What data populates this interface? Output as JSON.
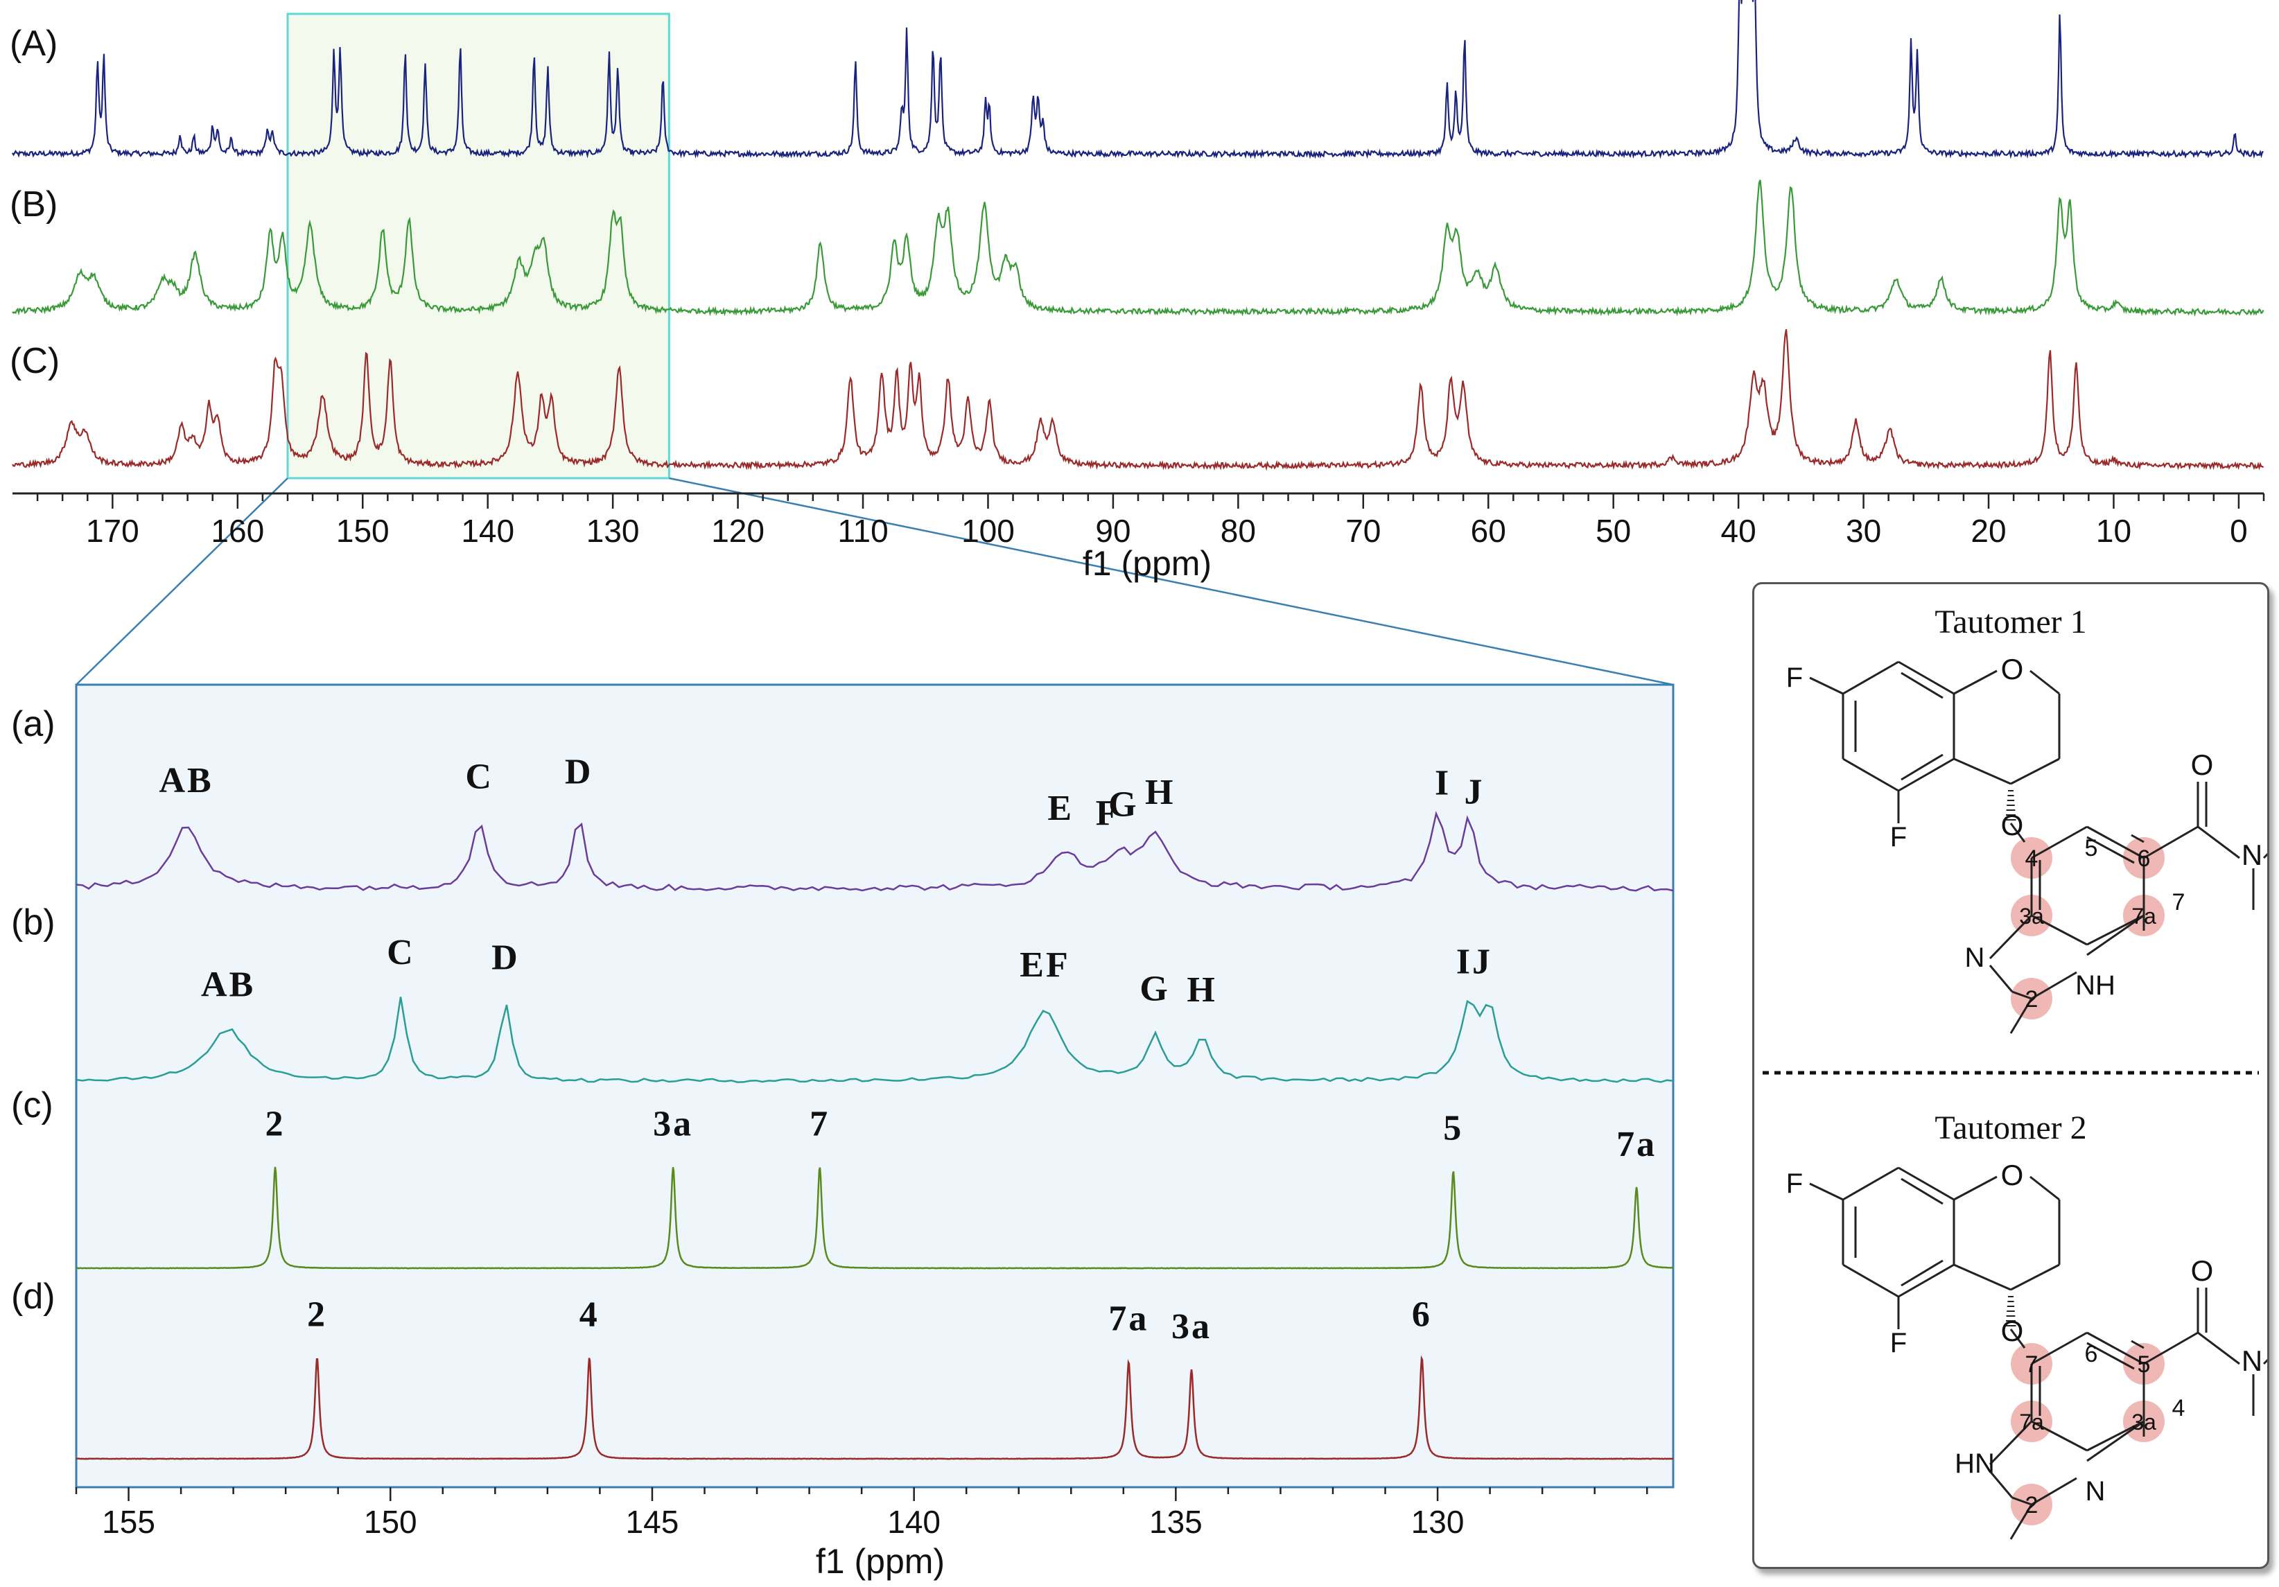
{
  "chart_data": [
    {
      "type": "line",
      "panel": "top",
      "xlabel": "f1 (ppm)",
      "xlim": [
        178,
        -2
      ],
      "x_reversed": true,
      "x_ticks": [
        170,
        160,
        150,
        140,
        130,
        120,
        110,
        100,
        90,
        80,
        70,
        60,
        50,
        40,
        30,
        20,
        10,
        0
      ],
      "zoom_region_ppm": [
        156,
        125.5
      ],
      "series": [
        {
          "name": "(A)",
          "color": "#1a237e",
          "peaks": [
            {
              "x": 171.2,
              "h": 0.62,
              "w": 0.12
            },
            {
              "x": 170.7,
              "h": 0.66,
              "w": 0.12
            },
            {
              "x": 164.6,
              "h": 0.14,
              "w": 0.12
            },
            {
              "x": 163.5,
              "h": 0.12,
              "w": 0.12
            },
            {
              "x": 162.0,
              "h": 0.19,
              "w": 0.12
            },
            {
              "x": 161.6,
              "h": 0.16,
              "w": 0.12
            },
            {
              "x": 160.5,
              "h": 0.11,
              "w": 0.12
            },
            {
              "x": 157.6,
              "h": 0.15,
              "w": 0.15
            },
            {
              "x": 157.2,
              "h": 0.13,
              "w": 0.15
            },
            {
              "x": 152.3,
              "h": 0.7,
              "w": 0.12
            },
            {
              "x": 151.8,
              "h": 0.72,
              "w": 0.12
            },
            {
              "x": 146.6,
              "h": 0.72,
              "w": 0.12
            },
            {
              "x": 145.0,
              "h": 0.63,
              "w": 0.12
            },
            {
              "x": 142.2,
              "h": 0.75,
              "w": 0.12
            },
            {
              "x": 136.3,
              "h": 0.7,
              "w": 0.12
            },
            {
              "x": 135.2,
              "h": 0.6,
              "w": 0.12
            },
            {
              "x": 130.3,
              "h": 0.68,
              "w": 0.12
            },
            {
              "x": 129.6,
              "h": 0.6,
              "w": 0.12
            },
            {
              "x": 126.0,
              "h": 0.53,
              "w": 0.12
            },
            {
              "x": 110.6,
              "h": 0.65,
              "w": 0.12
            },
            {
              "x": 106.9,
              "h": 0.28,
              "w": 0.12
            },
            {
              "x": 106.5,
              "h": 0.83,
              "w": 0.12
            },
            {
              "x": 104.4,
              "h": 0.74,
              "w": 0.12
            },
            {
              "x": 103.8,
              "h": 0.7,
              "w": 0.12
            },
            {
              "x": 100.2,
              "h": 0.33,
              "w": 0.12
            },
            {
              "x": 99.9,
              "h": 0.3,
              "w": 0.12
            },
            {
              "x": 96.4,
              "h": 0.38,
              "w": 0.13
            },
            {
              "x": 96.0,
              "h": 0.36,
              "w": 0.13
            },
            {
              "x": 95.6,
              "h": 0.2,
              "w": 0.13
            },
            {
              "x": 63.3,
              "h": 0.47,
              "w": 0.12
            },
            {
              "x": 62.6,
              "h": 0.42,
              "w": 0.12
            },
            {
              "x": 61.9,
              "h": 0.8,
              "w": 0.12
            },
            {
              "x": 39.9,
              "h": 0.98,
              "w": 0.14
            },
            {
              "x": 39.6,
              "h": 0.98,
              "w": 0.14
            },
            {
              "x": 39.3,
              "h": 0.98,
              "w": 0.14
            },
            {
              "x": 39.0,
              "h": 0.98,
              "w": 0.14
            },
            {
              "x": 38.7,
              "h": 0.98,
              "w": 0.14
            },
            {
              "x": 35.4,
              "h": 0.1,
              "w": 0.3
            },
            {
              "x": 26.2,
              "h": 0.75,
              "w": 0.12
            },
            {
              "x": 25.7,
              "h": 0.68,
              "w": 0.12
            },
            {
              "x": 14.3,
              "h": 0.98,
              "w": 0.12
            },
            {
              "x": 0.3,
              "h": 0.14,
              "w": 0.12
            }
          ]
        },
        {
          "name": "(B)",
          "color": "#3a9a3a",
          "peaks": [
            {
              "x": 172.6,
              "h": 0.22,
              "w": 0.6
            },
            {
              "x": 171.5,
              "h": 0.2,
              "w": 0.6
            },
            {
              "x": 166.0,
              "h": 0.18,
              "w": 0.5
            },
            {
              "x": 165.2,
              "h": 0.12,
              "w": 0.5
            },
            {
              "x": 163.4,
              "h": 0.38,
              "w": 0.5
            },
            {
              "x": 157.4,
              "h": 0.5,
              "w": 0.35
            },
            {
              "x": 156.4,
              "h": 0.45,
              "w": 0.35
            },
            {
              "x": 154.2,
              "h": 0.58,
              "w": 0.45
            },
            {
              "x": 148.4,
              "h": 0.55,
              "w": 0.35
            },
            {
              "x": 146.3,
              "h": 0.62,
              "w": 0.35
            },
            {
              "x": 137.5,
              "h": 0.3,
              "w": 0.5
            },
            {
              "x": 136.2,
              "h": 0.3,
              "w": 0.5
            },
            {
              "x": 135.5,
              "h": 0.38,
              "w": 0.4
            },
            {
              "x": 130.0,
              "h": 0.55,
              "w": 0.35
            },
            {
              "x": 129.4,
              "h": 0.5,
              "w": 0.35
            },
            {
              "x": 113.4,
              "h": 0.47,
              "w": 0.35
            },
            {
              "x": 107.5,
              "h": 0.43,
              "w": 0.35
            },
            {
              "x": 106.5,
              "h": 0.45,
              "w": 0.35
            },
            {
              "x": 104.0,
              "h": 0.52,
              "w": 0.4
            },
            {
              "x": 103.2,
              "h": 0.58,
              "w": 0.4
            },
            {
              "x": 100.3,
              "h": 0.7,
              "w": 0.45
            },
            {
              "x": 98.6,
              "h": 0.28,
              "w": 0.4
            },
            {
              "x": 97.8,
              "h": 0.25,
              "w": 0.4
            },
            {
              "x": 63.3,
              "h": 0.5,
              "w": 0.4
            },
            {
              "x": 62.5,
              "h": 0.44,
              "w": 0.4
            },
            {
              "x": 60.9,
              "h": 0.22,
              "w": 0.5
            },
            {
              "x": 59.4,
              "h": 0.28,
              "w": 0.5
            },
            {
              "x": 38.3,
              "h": 0.88,
              "w": 0.4
            },
            {
              "x": 35.8,
              "h": 0.85,
              "w": 0.4
            },
            {
              "x": 27.4,
              "h": 0.22,
              "w": 0.5
            },
            {
              "x": 23.8,
              "h": 0.22,
              "w": 0.45
            },
            {
              "x": 14.3,
              "h": 0.7,
              "w": 0.3
            },
            {
              "x": 13.5,
              "h": 0.68,
              "w": 0.3
            },
            {
              "x": 9.8,
              "h": 0.06,
              "w": 0.3
            }
          ]
        },
        {
          "name": "(C)",
          "color": "#9b2a2a",
          "peaks": [
            {
              "x": 173.3,
              "h": 0.27,
              "w": 0.5
            },
            {
              "x": 172.2,
              "h": 0.2,
              "w": 0.5
            },
            {
              "x": 164.5,
              "h": 0.25,
              "w": 0.35
            },
            {
              "x": 163.6,
              "h": 0.15,
              "w": 0.35
            },
            {
              "x": 162.3,
              "h": 0.38,
              "w": 0.3
            },
            {
              "x": 161.6,
              "h": 0.28,
              "w": 0.3
            },
            {
              "x": 157.0,
              "h": 0.6,
              "w": 0.3
            },
            {
              "x": 156.5,
              "h": 0.5,
              "w": 0.3
            },
            {
              "x": 153.2,
              "h": 0.47,
              "w": 0.45
            },
            {
              "x": 149.7,
              "h": 0.75,
              "w": 0.28
            },
            {
              "x": 147.8,
              "h": 0.72,
              "w": 0.28
            },
            {
              "x": 137.6,
              "h": 0.62,
              "w": 0.4
            },
            {
              "x": 135.7,
              "h": 0.42,
              "w": 0.3
            },
            {
              "x": 134.9,
              "h": 0.42,
              "w": 0.3
            },
            {
              "x": 129.5,
              "h": 0.68,
              "w": 0.35
            },
            {
              "x": 111.0,
              "h": 0.6,
              "w": 0.3
            },
            {
              "x": 108.5,
              "h": 0.6,
              "w": 0.3
            },
            {
              "x": 107.3,
              "h": 0.58,
              "w": 0.25
            },
            {
              "x": 106.2,
              "h": 0.6,
              "w": 0.25
            },
            {
              "x": 105.5,
              "h": 0.53,
              "w": 0.25
            },
            {
              "x": 103.2,
              "h": 0.57,
              "w": 0.3
            },
            {
              "x": 101.6,
              "h": 0.42,
              "w": 0.3
            },
            {
              "x": 99.9,
              "h": 0.42,
              "w": 0.3
            },
            {
              "x": 95.8,
              "h": 0.28,
              "w": 0.35
            },
            {
              "x": 94.8,
              "h": 0.28,
              "w": 0.35
            },
            {
              "x": 65.4,
              "h": 0.55,
              "w": 0.3
            },
            {
              "x": 63.0,
              "h": 0.55,
              "w": 0.3
            },
            {
              "x": 62.0,
              "h": 0.52,
              "w": 0.35
            },
            {
              "x": 45.3,
              "h": 0.05,
              "w": 0.4
            },
            {
              "x": 38.8,
              "h": 0.53,
              "w": 0.4
            },
            {
              "x": 38.0,
              "h": 0.45,
              "w": 0.4
            },
            {
              "x": 36.2,
              "h": 0.9,
              "w": 0.35
            },
            {
              "x": 30.6,
              "h": 0.3,
              "w": 0.35
            },
            {
              "x": 27.9,
              "h": 0.25,
              "w": 0.4
            },
            {
              "x": 15.1,
              "h": 0.78,
              "w": 0.25
            },
            {
              "x": 13.0,
              "h": 0.7,
              "w": 0.25
            },
            {
              "x": 10.0,
              "h": 0.04,
              "w": 0.3
            }
          ]
        }
      ]
    },
    {
      "type": "line",
      "panel": "zoom",
      "xlabel": "f1 (ppm)",
      "xlim": [
        156,
        125.5
      ],
      "x_reversed": true,
      "x_ticks": [
        155,
        150,
        145,
        140,
        135,
        130
      ],
      "series": [
        {
          "name": "(a)",
          "color": "#6a3d9a",
          "peaks": [
            {
              "x": 153.9,
              "h": 0.55,
              "w": 0.35
            },
            {
              "x": 148.3,
              "h": 0.58,
              "w": 0.18
            },
            {
              "x": 146.4,
              "h": 0.62,
              "w": 0.14
            },
            {
              "x": 137.1,
              "h": 0.3,
              "w": 0.35
            },
            {
              "x": 136.1,
              "h": 0.25,
              "w": 0.3
            },
            {
              "x": 135.4,
              "h": 0.45,
              "w": 0.3
            },
            {
              "x": 130.0,
              "h": 0.62,
              "w": 0.18
            },
            {
              "x": 129.4,
              "h": 0.57,
              "w": 0.16
            }
          ],
          "labels": [
            {
              "x": 153.9,
              "text": "AB"
            },
            {
              "x": 148.3,
              "text": "C"
            },
            {
              "x": 146.4,
              "text": "D"
            },
            {
              "x": 137.2,
              "text": "E"
            },
            {
              "x": 136.3,
              "text": "F"
            },
            {
              "x": 136.0,
              "text": "G"
            },
            {
              "x": 135.3,
              "text": "H"
            },
            {
              "x": 129.9,
              "text": "I"
            },
            {
              "x": 129.3,
              "text": "J"
            }
          ]
        },
        {
          "name": "(b)",
          "color": "#2a9d95",
          "peaks": [
            {
              "x": 153.1,
              "h": 0.45,
              "w": 0.45
            },
            {
              "x": 149.8,
              "h": 0.72,
              "w": 0.13
            },
            {
              "x": 147.8,
              "h": 0.68,
              "w": 0.13
            },
            {
              "x": 137.5,
              "h": 0.62,
              "w": 0.38
            },
            {
              "x": 135.4,
              "h": 0.38,
              "w": 0.18
            },
            {
              "x": 134.5,
              "h": 0.38,
              "w": 0.18
            },
            {
              "x": 129.4,
              "h": 0.62,
              "w": 0.2
            },
            {
              "x": 129.0,
              "h": 0.58,
              "w": 0.18
            }
          ],
          "labels": [
            {
              "x": 153.1,
              "text": "AB"
            },
            {
              "x": 149.8,
              "text": "C"
            },
            {
              "x": 147.8,
              "text": "D"
            },
            {
              "x": 137.5,
              "text": "EF"
            },
            {
              "x": 135.4,
              "text": "G"
            },
            {
              "x": 134.5,
              "text": "H"
            },
            {
              "x": 129.3,
              "text": "IJ"
            }
          ]
        },
        {
          "name": "(c)",
          "color": "#5a8a1e",
          "peaks": [
            {
              "x": 152.2,
              "h": 0.75,
              "w": 0.05
            },
            {
              "x": 144.6,
              "h": 0.75,
              "w": 0.05
            },
            {
              "x": 141.8,
              "h": 0.75,
              "w": 0.05
            },
            {
              "x": 129.7,
              "h": 0.72,
              "w": 0.05
            },
            {
              "x": 126.2,
              "h": 0.6,
              "w": 0.05
            }
          ],
          "labels": [
            {
              "x": 152.2,
              "text": "2"
            },
            {
              "x": 144.6,
              "text": "3a"
            },
            {
              "x": 141.8,
              "text": "7"
            },
            {
              "x": 129.7,
              "text": "5"
            },
            {
              "x": 126.2,
              "text": "7a"
            }
          ]
        },
        {
          "name": "(d)",
          "color": "#9b2a2a",
          "peaks": [
            {
              "x": 151.4,
              "h": 0.75,
              "w": 0.05
            },
            {
              "x": 146.2,
              "h": 0.75,
              "w": 0.05
            },
            {
              "x": 135.9,
              "h": 0.72,
              "w": 0.05
            },
            {
              "x": 134.7,
              "h": 0.66,
              "w": 0.05
            },
            {
              "x": 130.3,
              "h": 0.75,
              "w": 0.05
            }
          ],
          "labels": [
            {
              "x": 151.4,
              "text": "2"
            },
            {
              "x": 146.2,
              "text": "4"
            },
            {
              "x": 135.9,
              "text": "7a"
            },
            {
              "x": 134.7,
              "text": "3a"
            },
            {
              "x": 130.3,
              "text": "6"
            }
          ]
        }
      ]
    }
  ],
  "tautomers": [
    {
      "title": "Tautomer 1",
      "atoms": {
        "F_top": "F",
        "O_ring": "O",
        "F_bottom": "F",
        "O_link": "O",
        "O_carbonyl": "O",
        "N_amide": "N",
        "N_ring": "N",
        "NH": "NH"
      },
      "numbers": [
        "4",
        "5",
        "6",
        "3a",
        "7a",
        "7",
        "2"
      ],
      "highlighted": [
        "4",
        "6",
        "3a",
        "7a",
        "2"
      ]
    },
    {
      "title": "Tautomer 2",
      "atoms": {
        "F_top": "F",
        "O_ring": "O",
        "F_bottom": "F",
        "O_link": "O",
        "O_carbonyl": "O",
        "N_amide": "N",
        "N_ring": "N",
        "NH": "HN"
      },
      "numbers": [
        "7",
        "6",
        "5",
        "7a",
        "3a",
        "4",
        "2"
      ],
      "highlighted": [
        "7",
        "5",
        "7a",
        "3a",
        "2"
      ]
    }
  ],
  "colors": {
    "highlight": "#f0b8b4",
    "zoom_top_fill": "#f3f9ec",
    "zoom_top_stroke": "#5fd8d8",
    "zoom_panel_fill": "#eef6fc",
    "zoom_panel_stroke": "#3a7fb0"
  }
}
